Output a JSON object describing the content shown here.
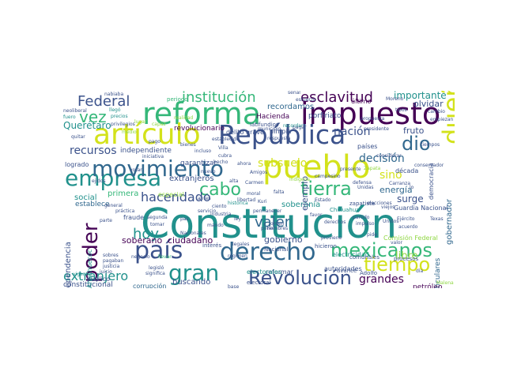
{
  "wordcloud": {
    "colors": {
      "background": "#ffffff",
      "dark_purple": "#440154",
      "indigo": "#3b528b",
      "blue": "#31688e",
      "teal": "#21918c",
      "green": "#35b779",
      "lime": "#90d743",
      "yellow": "#d3e21b"
    },
    "words": [
      "Constitución",
      "pueblo",
      "impuesto",
      "reforma",
      "artículo",
      "República",
      "derecho",
      "empresa",
      "movimiento",
      "país",
      "dueño",
      "Revolución",
      "tiempo",
      "tierra",
      "mexicanos",
      "poder",
      "cabo",
      "dio",
      "vez",
      "gran",
      "institución",
      "esclavitud",
      "Federal",
      "hacendado",
      "valer",
      "nación",
      "extranjero",
      "hoy",
      "recursos",
      "subsuelo",
      "decisión",
      "sino",
      "importante",
      "grandes",
      "fruto",
      "energía",
      "surge",
      "libre",
      "soberano",
      "ciudadano",
      "gobierno",
      "independiente",
      "primera",
      "extranjeros",
      "buscando",
      "Querétaro",
      "recordamos",
      "gobernador",
      "Hacienda",
      "revolucionario",
      "particulares",
      "soberanía",
      "soberana",
      "independencia",
      "social",
      "establece",
      "constitucional",
      "corrupción",
      "petróleo",
      "reformar",
      "electorales",
      "electricidad",
      "Guardia Nacional",
      "Comisión Federal",
      "autoridades",
      "ejemplo",
      "década",
      "democracia",
      "olvidar",
      "último",
      "países",
      "logrado",
      "garantizar",
      "especial",
      "limpia",
      "porfiriato",
      "Chihuahua",
      "delito grave",
      "latifundios",
      "interés",
      "fraude",
      "público",
      "nabiaba",
      "periodo",
      "llegó",
      "neoliberal",
      "fuero",
      "Terrazas",
      "cambio",
      "zapatista",
      "Malena",
      "Nacional",
      "comunales",
      "hicieron",
      "Adolfo",
      "procesos",
      "electoral",
      "avance",
      "señal",
      "esfuerzo",
      "defensa",
      "respuesta",
      "iniciativa",
      "bienes",
      "tomar",
      "práctica",
      "segunda",
      "llevar",
      "significa",
      "Kuri",
      "poner",
      "favor",
      "Amigos",
      "Ahuehuecoc",
      "Necesitamos",
      "votar",
      "juicio",
      "pagaban",
      "general",
      "sobres",
      "empiezan",
      "justicia",
      "Zapata",
      "legisló",
      "presente",
      "campesino",
      "medio",
      "lugar",
      "propuesta",
      "pide",
      "falta",
      "capaz",
      "precios",
      "indígena",
      "recordar",
      "vigente",
      "Unidos",
      "cubra",
      "establecido",
      "ahora",
      "Villa",
      "realidad",
      "quitar",
      "proviene",
      "considerar",
      "municipio",
      "tipos",
      "presidente",
      "orden",
      "alta",
      "incluso",
      "privilegios",
      "ejidos",
      "moral",
      "ley",
      "histórica",
      "mando",
      "hombres",
      "negocio",
      "impulso",
      "base",
      "Nacionales",
      "régimen",
      "ciento",
      "partido",
      "pagar",
      "pago",
      "Texas",
      "día",
      "pueblos",
      "acuerdo",
      "derechos",
      "parte",
      "paz",
      "Carranza",
      "conservador",
      "viejos",
      "libertad",
      "Estado",
      "permanecer",
      "servicio",
      "Carmen",
      "nuevo",
      "hecho",
      "Moreno",
      "Ejército",
      "elecciones",
      "valor",
      "tiempos",
      "Unidas",
      "lo",
      "antes",
      "industria",
      "legales"
    ]
  }
}
